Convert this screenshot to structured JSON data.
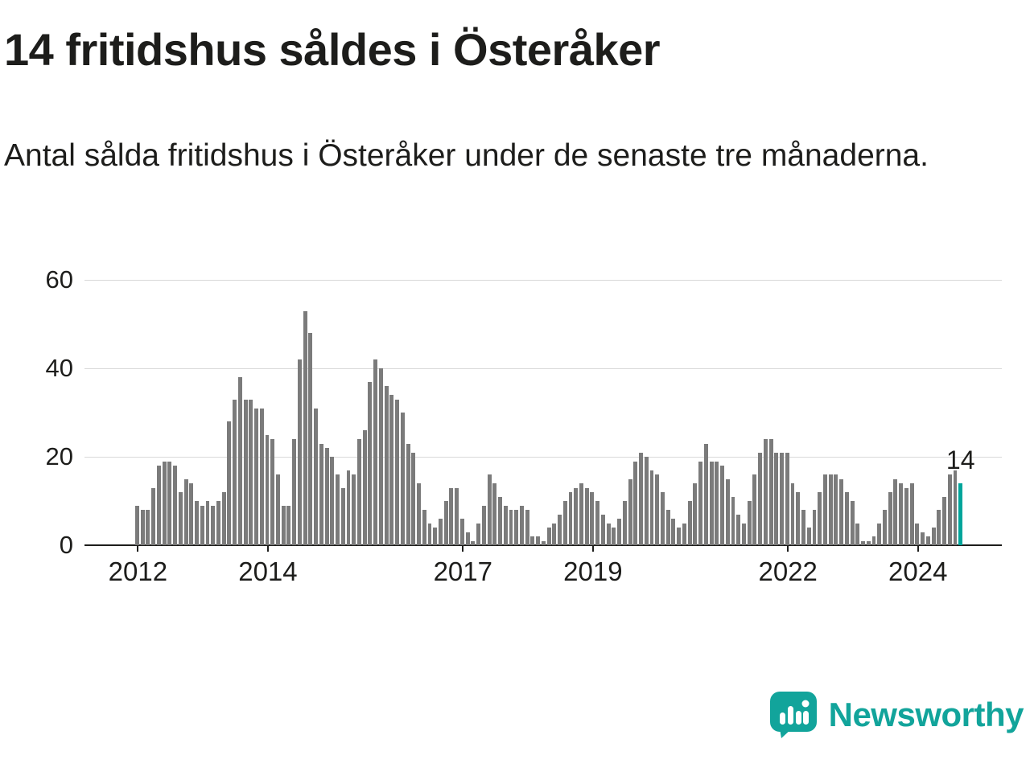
{
  "title": "14 fritidshus såldes i Österåker",
  "subtitle": "Antal sålda fritidshus i Österåker under de senaste tre månaderna.",
  "branding": {
    "name": "Newsworthy",
    "accent": "#12a49b"
  },
  "colors": {
    "bar": "#7b7b7b",
    "highlight": "#00a59b",
    "grid": "#d9d9d9",
    "axis": "#1d1d1b",
    "text": "#1d1d1b"
  },
  "chart_data": {
    "type": "bar",
    "title": "14 fritidshus såldes i Österåker",
    "subtitle": "Antal sålda fritidshus i Österåker under de senaste tre månaderna.",
    "ylabel": "",
    "xlabel": "",
    "ylim": [
      0,
      60
    ],
    "y_ticks": [
      0,
      20,
      40,
      60
    ],
    "grid": true,
    "x_tick_labels": [
      "2012",
      "2014",
      "2017",
      "2019",
      "2022",
      "2024"
    ],
    "x_tick_indices": [
      0,
      24,
      60,
      84,
      120,
      144
    ],
    "highlight_last": true,
    "last_value_label": "14",
    "values": [
      9,
      8,
      8,
      13,
      18,
      19,
      19,
      18,
      12,
      15,
      14,
      10,
      9,
      10,
      9,
      10,
      12,
      28,
      33,
      38,
      33,
      33,
      31,
      31,
      25,
      24,
      16,
      9,
      9,
      24,
      42,
      53,
      48,
      31,
      23,
      22,
      20,
      16,
      13,
      17,
      16,
      24,
      26,
      37,
      42,
      40,
      36,
      34,
      33,
      30,
      23,
      21,
      14,
      8,
      5,
      4,
      6,
      10,
      13,
      13,
      6,
      3,
      1,
      5,
      9,
      16,
      14,
      11,
      9,
      8,
      8,
      9,
      8,
      2,
      2,
      1,
      4,
      5,
      7,
      10,
      12,
      13,
      14,
      13,
      12,
      10,
      7,
      5,
      4,
      6,
      10,
      15,
      19,
      21,
      20,
      17,
      16,
      12,
      8,
      6,
      4,
      5,
      10,
      14,
      19,
      23,
      19,
      19,
      18,
      15,
      11,
      7,
      5,
      10,
      16,
      21,
      24,
      24,
      21,
      21,
      21,
      14,
      12,
      8,
      4,
      8,
      12,
      16,
      16,
      16,
      15,
      12,
      10,
      5,
      1,
      1,
      2,
      5,
      8,
      12,
      15,
      14,
      13,
      14,
      5,
      3,
      2,
      4,
      8,
      11,
      16,
      17,
      14
    ]
  }
}
